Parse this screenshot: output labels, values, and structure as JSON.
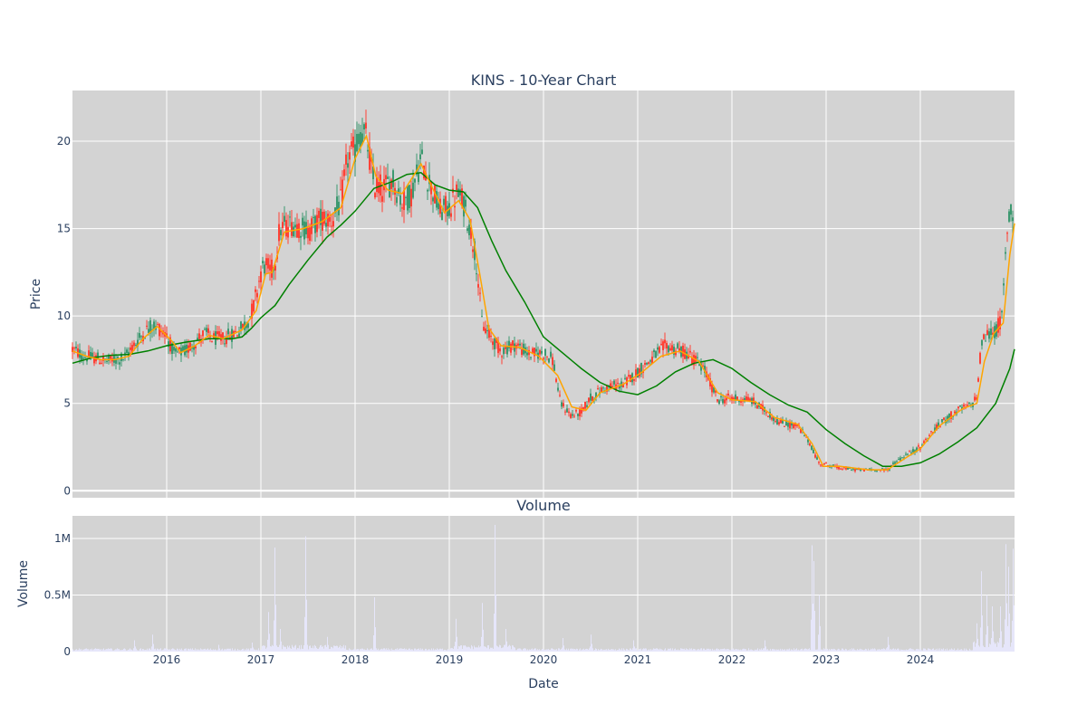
{
  "chart_data": [
    {
      "type": "candlestick",
      "title": "KINS - 10-Year Chart",
      "ylabel": "Price",
      "xlabel": "",
      "ylim": [
        -0.4,
        22.9
      ],
      "xlim": [
        2015.0,
        2025.0
      ],
      "y_ticks": [
        0,
        5,
        10,
        15,
        20
      ],
      "y_tick_labels": [
        "0",
        "5",
        "10",
        "15",
        "20"
      ],
      "x_ticks": [
        2016,
        2017,
        2018,
        2019,
        2020,
        2021,
        2022,
        2023,
        2024
      ],
      "grid": true,
      "colors": {
        "plot_bg": "#d3d3d3",
        "grid": "#ffffff",
        "up": "#3d9970",
        "down": "#ff4136",
        "short_ma": "#ffa500",
        "long_ma": "#008000"
      },
      "price_path": [
        [
          2015.0,
          8.1
        ],
        [
          2015.12,
          7.7
        ],
        [
          2015.25,
          7.6
        ],
        [
          2015.35,
          7.4
        ],
        [
          2015.45,
          7.5
        ],
        [
          2015.55,
          7.6
        ],
        [
          2015.65,
          8.3
        ],
        [
          2015.75,
          9.0
        ],
        [
          2015.85,
          9.5
        ],
        [
          2015.92,
          9.3
        ],
        [
          2016.0,
          8.9
        ],
        [
          2016.08,
          7.8
        ],
        [
          2016.2,
          8.0
        ],
        [
          2016.3,
          8.5
        ],
        [
          2016.4,
          9.0
        ],
        [
          2016.5,
          8.7
        ],
        [
          2016.6,
          8.7
        ],
        [
          2016.75,
          9.1
        ],
        [
          2016.85,
          9.6
        ],
        [
          2016.92,
          10.5
        ],
        [
          2017.0,
          12.5
        ],
        [
          2017.05,
          13.0
        ],
        [
          2017.1,
          12.5
        ],
        [
          2017.15,
          13.0
        ],
        [
          2017.2,
          15.0
        ],
        [
          2017.35,
          15.3
        ],
        [
          2017.5,
          14.9
        ],
        [
          2017.65,
          15.6
        ],
        [
          2017.75,
          15.5
        ],
        [
          2017.85,
          16.5
        ],
        [
          2017.92,
          19.0
        ],
        [
          2018.0,
          19.5
        ],
        [
          2018.05,
          20.5
        ],
        [
          2018.12,
          20.2
        ],
        [
          2018.2,
          17.5
        ],
        [
          2018.3,
          17.3
        ],
        [
          2018.4,
          17.8
        ],
        [
          2018.5,
          16.5
        ],
        [
          2018.6,
          17.0
        ],
        [
          2018.7,
          19.0
        ],
        [
          2018.8,
          17.5
        ],
        [
          2018.9,
          16.0
        ],
        [
          2019.0,
          16.2
        ],
        [
          2019.08,
          17.0
        ],
        [
          2019.15,
          16.5
        ],
        [
          2019.22,
          15.0
        ],
        [
          2019.28,
          13.5
        ],
        [
          2019.35,
          9.5
        ],
        [
          2019.45,
          8.7
        ],
        [
          2019.55,
          8.0
        ],
        [
          2019.7,
          8.4
        ],
        [
          2019.85,
          7.8
        ],
        [
          2020.0,
          7.9
        ],
        [
          2020.1,
          7.5
        ],
        [
          2020.18,
          5.0
        ],
        [
          2020.3,
          4.3
        ],
        [
          2020.4,
          4.5
        ],
        [
          2020.5,
          5.3
        ],
        [
          2020.65,
          5.9
        ],
        [
          2020.85,
          6.1
        ],
        [
          2021.0,
          6.8
        ],
        [
          2021.1,
          7.3
        ],
        [
          2021.2,
          7.8
        ],
        [
          2021.3,
          8.3
        ],
        [
          2021.45,
          8.0
        ],
        [
          2021.55,
          7.8
        ],
        [
          2021.7,
          7.0
        ],
        [
          2021.85,
          5.2
        ],
        [
          2022.0,
          5.3
        ],
        [
          2022.2,
          5.2
        ],
        [
          2022.35,
          4.6
        ],
        [
          2022.5,
          3.9
        ],
        [
          2022.7,
          3.7
        ],
        [
          2022.82,
          2.8
        ],
        [
          2022.92,
          1.6
        ],
        [
          2023.0,
          1.5
        ],
        [
          2023.15,
          1.3
        ],
        [
          2023.35,
          1.2
        ],
        [
          2023.55,
          1.2
        ],
        [
          2023.65,
          1.2
        ],
        [
          2023.75,
          1.7
        ],
        [
          2023.9,
          2.2
        ],
        [
          2024.0,
          2.5
        ],
        [
          2024.1,
          3.2
        ],
        [
          2024.25,
          4.0
        ],
        [
          2024.4,
          4.6
        ],
        [
          2024.55,
          4.9
        ],
        [
          2024.6,
          5.5
        ],
        [
          2024.65,
          8.5
        ],
        [
          2024.72,
          9.0
        ],
        [
          2024.8,
          9.1
        ],
        [
          2024.87,
          10.0
        ],
        [
          2024.92,
          15.0
        ],
        [
          2024.96,
          16.0
        ],
        [
          2025.0,
          15.6
        ]
      ],
      "short_ma_path": [
        [
          2015.0,
          8.0
        ],
        [
          2015.15,
          7.7
        ],
        [
          2015.3,
          7.5
        ],
        [
          2015.45,
          7.5
        ],
        [
          2015.6,
          7.7
        ],
        [
          2015.75,
          8.7
        ],
        [
          2015.9,
          9.4
        ],
        [
          2016.05,
          8.6
        ],
        [
          2016.15,
          7.9
        ],
        [
          2016.3,
          8.3
        ],
        [
          2016.45,
          8.9
        ],
        [
          2016.6,
          8.7
        ],
        [
          2016.8,
          9.2
        ],
        [
          2016.95,
          10.3
        ],
        [
          2017.05,
          12.4
        ],
        [
          2017.12,
          12.5
        ],
        [
          2017.25,
          14.8
        ],
        [
          2017.45,
          15.0
        ],
        [
          2017.65,
          15.4
        ],
        [
          2017.85,
          16.2
        ],
        [
          2018.0,
          19.0
        ],
        [
          2018.12,
          20.3
        ],
        [
          2018.22,
          18.0
        ],
        [
          2018.35,
          17.2
        ],
        [
          2018.5,
          17.0
        ],
        [
          2018.7,
          18.7
        ],
        [
          2018.85,
          17.0
        ],
        [
          2018.95,
          15.9
        ],
        [
          2019.1,
          16.6
        ],
        [
          2019.22,
          15.5
        ],
        [
          2019.32,
          12.5
        ],
        [
          2019.42,
          9.3
        ],
        [
          2019.55,
          8.3
        ],
        [
          2019.75,
          8.2
        ],
        [
          2019.95,
          7.7
        ],
        [
          2020.15,
          6.6
        ],
        [
          2020.3,
          4.8
        ],
        [
          2020.45,
          4.6
        ],
        [
          2020.6,
          5.6
        ],
        [
          2020.85,
          6.1
        ],
        [
          2021.05,
          6.8
        ],
        [
          2021.25,
          7.7
        ],
        [
          2021.45,
          8.0
        ],
        [
          2021.65,
          7.4
        ],
        [
          2021.85,
          5.6
        ],
        [
          2022.0,
          5.2
        ],
        [
          2022.25,
          5.1
        ],
        [
          2022.45,
          4.2
        ],
        [
          2022.7,
          3.8
        ],
        [
          2022.85,
          2.7
        ],
        [
          2022.97,
          1.4
        ],
        [
          2023.15,
          1.4
        ],
        [
          2023.45,
          1.2
        ],
        [
          2023.65,
          1.2
        ],
        [
          2023.85,
          1.9
        ],
        [
          2024.0,
          2.4
        ],
        [
          2024.2,
          3.7
        ],
        [
          2024.45,
          4.7
        ],
        [
          2024.6,
          5.0
        ],
        [
          2024.68,
          7.4
        ],
        [
          2024.78,
          9.0
        ],
        [
          2024.88,
          9.6
        ],
        [
          2024.95,
          13.5
        ],
        [
          2025.0,
          15.3
        ]
      ],
      "long_ma_path": [
        [
          2015.0,
          7.3
        ],
        [
          2015.2,
          7.6
        ],
        [
          2015.4,
          7.75
        ],
        [
          2015.6,
          7.8
        ],
        [
          2015.8,
          8.0
        ],
        [
          2016.0,
          8.3
        ],
        [
          2016.2,
          8.5
        ],
        [
          2016.45,
          8.7
        ],
        [
          2016.7,
          8.7
        ],
        [
          2016.8,
          8.8
        ],
        [
          2016.9,
          9.3
        ],
        [
          2017.0,
          9.9
        ],
        [
          2017.15,
          10.6
        ],
        [
          2017.3,
          11.8
        ],
        [
          2017.5,
          13.2
        ],
        [
          2017.7,
          14.5
        ],
        [
          2017.85,
          15.2
        ],
        [
          2018.0,
          16.0
        ],
        [
          2018.2,
          17.3
        ],
        [
          2018.4,
          17.7
        ],
        [
          2018.55,
          18.1
        ],
        [
          2018.7,
          18.2
        ],
        [
          2018.85,
          17.5
        ],
        [
          2019.0,
          17.2
        ],
        [
          2019.15,
          17.1
        ],
        [
          2019.3,
          16.2
        ],
        [
          2019.45,
          14.3
        ],
        [
          2019.6,
          12.6
        ],
        [
          2019.8,
          10.8
        ],
        [
          2020.0,
          8.8
        ],
        [
          2020.2,
          7.9
        ],
        [
          2020.4,
          7.0
        ],
        [
          2020.6,
          6.2
        ],
        [
          2020.8,
          5.7
        ],
        [
          2021.0,
          5.5
        ],
        [
          2021.2,
          6.0
        ],
        [
          2021.4,
          6.8
        ],
        [
          2021.6,
          7.3
        ],
        [
          2021.8,
          7.5
        ],
        [
          2022.0,
          7.0
        ],
        [
          2022.2,
          6.2
        ],
        [
          2022.4,
          5.5
        ],
        [
          2022.6,
          4.9
        ],
        [
          2022.8,
          4.5
        ],
        [
          2023.0,
          3.5
        ],
        [
          2023.2,
          2.7
        ],
        [
          2023.4,
          2.0
        ],
        [
          2023.6,
          1.4
        ],
        [
          2023.8,
          1.4
        ],
        [
          2024.0,
          1.6
        ],
        [
          2024.2,
          2.1
        ],
        [
          2024.4,
          2.8
        ],
        [
          2024.6,
          3.6
        ],
        [
          2024.8,
          5.0
        ],
        [
          2024.95,
          7.0
        ],
        [
          2025.0,
          8.1
        ]
      ]
    },
    {
      "type": "bar",
      "title": "Volume",
      "ylabel": "Volume",
      "xlabel": "Date",
      "ylim": [
        0,
        1200000
      ],
      "xlim": [
        2015.0,
        2025.0
      ],
      "y_ticks": [
        0,
        500000,
        1000000
      ],
      "y_tick_labels": [
        "0",
        "0.5M",
        "1M"
      ],
      "x_ticks": [
        2016,
        2017,
        2018,
        2019,
        2020,
        2021,
        2022,
        2023,
        2024
      ],
      "x_tick_labels": [
        "2016",
        "2017",
        "2018",
        "2019",
        "2020",
        "2021",
        "2022",
        "2023",
        "2024"
      ],
      "grid": true,
      "colors": {
        "bar": "#e6e6fa",
        "plot_bg": "#d3d3d3",
        "grid": "#ffffff"
      },
      "baseline_volume": 20000,
      "spikes": [
        [
          2015.65,
          100000
        ],
        [
          2015.85,
          150000
        ],
        [
          2016.55,
          60000
        ],
        [
          2016.9,
          80000
        ],
        [
          2017.08,
          350000
        ],
        [
          2017.14,
          920000
        ],
        [
          2017.2,
          200000
        ],
        [
          2017.47,
          1020000
        ],
        [
          2017.7,
          130000
        ],
        [
          2018.2,
          480000
        ],
        [
          2019.07,
          290000
        ],
        [
          2019.35,
          430000
        ],
        [
          2019.48,
          1120000
        ],
        [
          2019.6,
          200000
        ],
        [
          2020.2,
          120000
        ],
        [
          2020.5,
          150000
        ],
        [
          2020.95,
          100000
        ],
        [
          2022.35,
          100000
        ],
        [
          2022.85,
          940000
        ],
        [
          2022.87,
          800000
        ],
        [
          2022.92,
          500000
        ],
        [
          2023.65,
          130000
        ],
        [
          2024.6,
          250000
        ],
        [
          2024.64,
          710000
        ],
        [
          2024.7,
          500000
        ],
        [
          2024.76,
          400000
        ],
        [
          2024.85,
          400000
        ],
        [
          2024.9,
          950000
        ],
        [
          2024.93,
          750000
        ],
        [
          2024.98,
          910000
        ]
      ]
    }
  ]
}
